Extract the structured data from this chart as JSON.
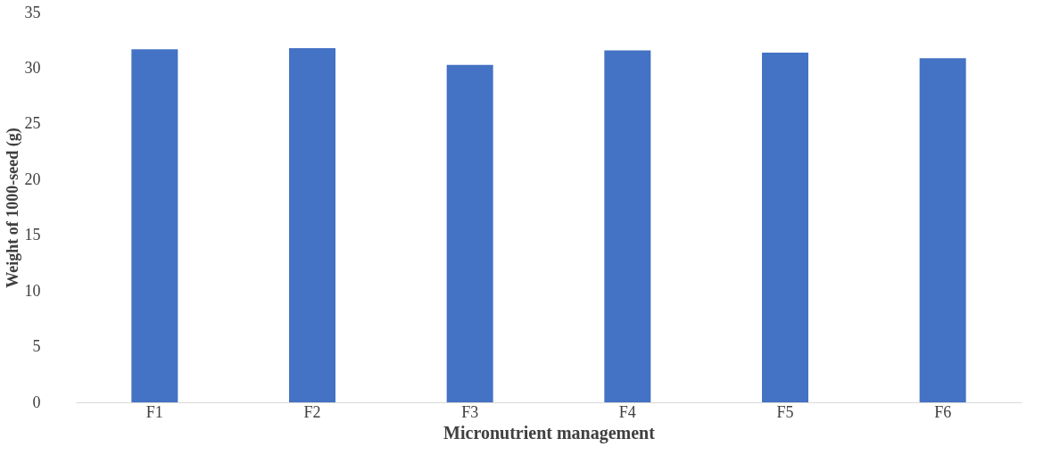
{
  "chart_data": {
    "type": "bar",
    "xlabel": "Micronutrient management",
    "ylabel": "Weight of 1000-seed (g)",
    "categories": [
      "F1",
      "F2",
      "F3",
      "F4",
      "F5",
      "F6"
    ],
    "values": [
      31.7,
      31.8,
      30.3,
      31.6,
      31.4,
      30.9
    ],
    "color": "#4472c4",
    "ylim": [
      0,
      35
    ],
    "yticks": [
      0,
      5,
      10,
      15,
      20,
      25,
      30,
      35
    ],
    "grid": false
  }
}
